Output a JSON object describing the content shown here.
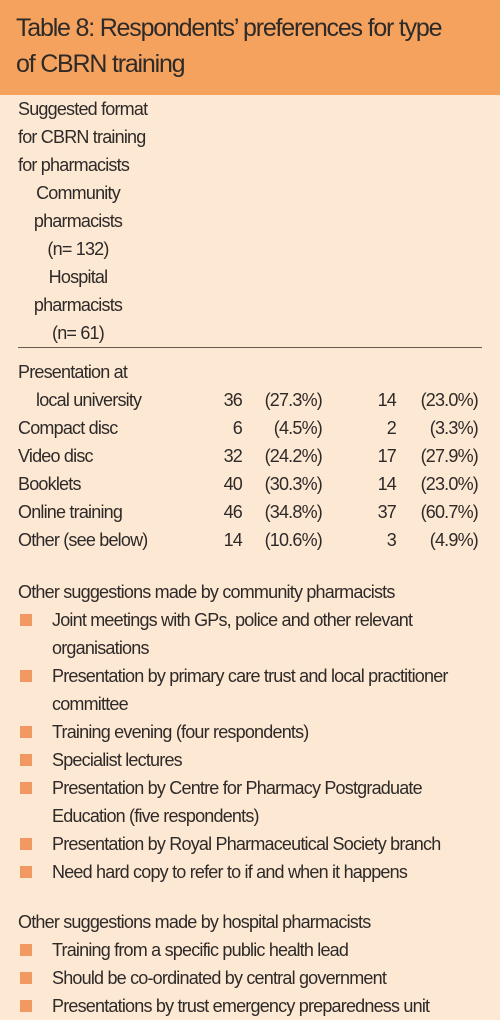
{
  "title": "Table 8: Respondents’ preferences for type of CBRN training",
  "table": {
    "headers": [
      [
        "Suggested format",
        "for CBRN training",
        "for pharmacists"
      ],
      [
        "Community",
        "pharmacists",
        "(n= 132)"
      ],
      [
        "Hospital",
        "pharmacists",
        "(n= 61)"
      ]
    ],
    "rows": [
      {
        "label": [
          "Presentation at",
          "local university"
        ],
        "cells": [
          "36",
          "(27.3%)",
          "14",
          "(23.0%)"
        ]
      },
      {
        "label": [
          "Compact disc"
        ],
        "cells": [
          "6",
          "(4.5%)",
          "2",
          "(3.3%)"
        ]
      },
      {
        "label": [
          "Video disc"
        ],
        "cells": [
          "32",
          "(24.2%)",
          "17",
          "(27.9%)"
        ]
      },
      {
        "label": [
          "Booklets"
        ],
        "cells": [
          "40",
          "(30.3%)",
          "14",
          "(23.0%)"
        ]
      },
      {
        "label": [
          "Online training"
        ],
        "cells": [
          "46",
          "(34.8%)",
          "37",
          "(60.7%)"
        ]
      },
      {
        "label": [
          "Other (see below)"
        ],
        "cells": [
          "14",
          "(10.6%)",
          "3",
          "(4.9%)"
        ]
      }
    ]
  },
  "community_suggestions": {
    "heading": "Other suggestions made by community pharmacists",
    "items": [
      "Joint meetings with GPs, police and other relevant organisations",
      "Presentation by primary care trust and local practitioner committee",
      "Training evening (four respondents)",
      "Specialist lectures",
      "Presentation by Centre for Pharmacy Postgraduate Education (five respondents)",
      "Presentation by Royal Pharmaceutical Society branch",
      "Need hard copy to refer to if and when it happens"
    ]
  },
  "hospital_suggestions": {
    "heading": "Other suggestions made by hospital pharmacists",
    "items": [
      "Training from a specific public health lead",
      "Should be co-ordinated by central government",
      "Presentations by trust emergency preparedness unit"
    ]
  }
}
